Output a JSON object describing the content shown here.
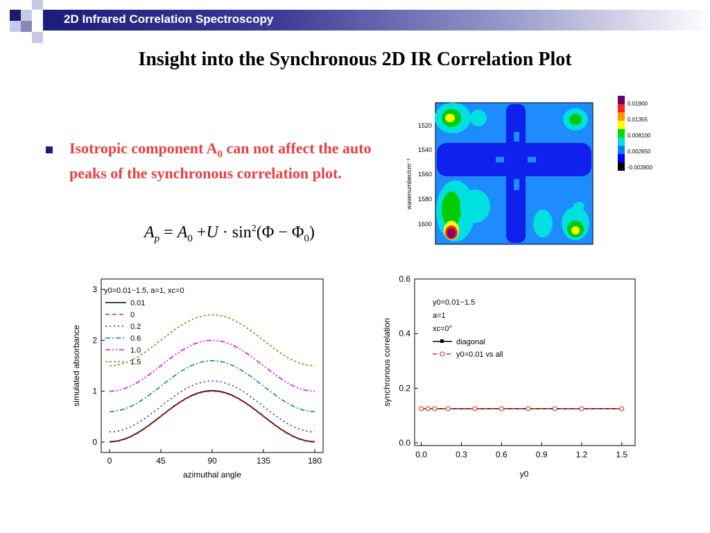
{
  "header": {
    "title": "2D Infrared Correlation Spectroscopy"
  },
  "slide": {
    "title": "Insight into the Synchronous 2D IR Correlation Plot",
    "bullet": "Isotropic component A0 can not affect the auto peaks of the synchronous correlation plot.",
    "bullet_parts": {
      "pre": "Isotropic component A",
      "sub": "0",
      "post": " can not affect the auto peaks of the synchronous correlation plot."
    },
    "equation": {
      "lhs": "A",
      "lhs_sub": "p",
      "a0": "A",
      "a0_sub": "0",
      "u": "U",
      "sin": "sin",
      "exp": "2",
      "phi": "(Φ − Φ",
      "phi_sub": "0",
      "close": ")"
    }
  },
  "chart_data": [
    {
      "type": "heatmap",
      "title": "",
      "ylabel": "wavenumber/cm⁻¹",
      "yticks": [
        "1520",
        "1540",
        "1560",
        "1580",
        "1600"
      ],
      "legend_levels": [
        "0.01900",
        "0.01355",
        "0.008100",
        "0.002650",
        "-0.002800"
      ],
      "legend_colors": [
        "#6a006a",
        "#ff2020",
        "#ffff00",
        "#00dd00",
        "#00e0e0",
        "#0080ff",
        "#0000ff",
        "#000000"
      ]
    },
    {
      "type": "line",
      "xlabel": "azimuthal angle",
      "ylabel": "simulated absorbance",
      "xticks": [
        "0",
        "45",
        "90",
        "135",
        "180"
      ],
      "yticks": [
        "0",
        "1",
        "2",
        "3"
      ],
      "xlim": [
        0,
        180
      ],
      "ylim": [
        0,
        3
      ],
      "legend_title": "y0=0.01~1.5, a=1, xc=0",
      "series": [
        {
          "name": "0.01",
          "color": "#000000",
          "y0": 0.01,
          "dash": ""
        },
        {
          "name": "0",
          "color": "#e02020",
          "y0": 0.0,
          "dash": "6,4"
        },
        {
          "name": "0.2",
          "color": "#2020e0",
          "y0": 0.2,
          "dash": "2,4"
        },
        {
          "name": "0.6",
          "color": "#108888",
          "y0": 0.6,
          "dash": "7,3,2,3"
        },
        {
          "name": "1.0",
          "color": "#ee00ee",
          "y0": 1.0,
          "dash": "7,3,2,3,2,3"
        },
        {
          "name": "1.5",
          "color": "#8a8a10",
          "y0": 1.5,
          "dash": "3,3"
        }
      ],
      "x": [
        0,
        10,
        20,
        30,
        40,
        50,
        60,
        70,
        80,
        90,
        100,
        110,
        120,
        130,
        140,
        150,
        160,
        170,
        180
      ],
      "amplitude": 1
    },
    {
      "type": "line",
      "xlabel": "y0",
      "ylabel": "synchronous correlation",
      "xticks": [
        "0.0",
        "0.3",
        "0.6",
        "0.9",
        "1.2",
        "1.5"
      ],
      "yticks": [
        "0.0",
        "0.2",
        "0.4",
        "0.6"
      ],
      "xlim": [
        -0.05,
        1.6
      ],
      "ylim": [
        -0.01,
        0.6
      ],
      "annotations": [
        "y0=0.01~1.5",
        "a=1",
        "xc=0°"
      ],
      "series": [
        {
          "name": "diagonal",
          "color": "#000000",
          "x": [
            0.0,
            0.05,
            0.1,
            0.2,
            0.4,
            0.6,
            0.8,
            1.0,
            1.2,
            1.5
          ],
          "values": [
            0.125,
            0.125,
            0.125,
            0.125,
            0.125,
            0.125,
            0.125,
            0.125,
            0.125,
            0.125
          ]
        },
        {
          "name": "y0=0.01 vs all",
          "color": "#e02020",
          "x": [
            0.0,
            0.05,
            0.1,
            0.2,
            0.4,
            0.6,
            0.8,
            1.0,
            1.2,
            1.5
          ],
          "values": [
            0.125,
            0.125,
            0.125,
            0.125,
            0.125,
            0.125,
            0.125,
            0.125,
            0.125,
            0.125
          ]
        }
      ]
    }
  ]
}
